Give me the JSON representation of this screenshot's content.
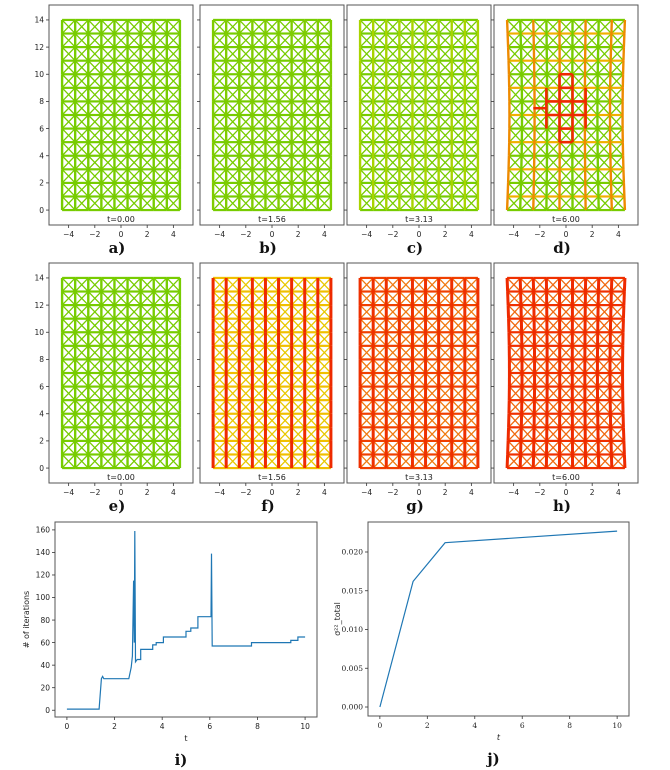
{
  "lattice_panels": [
    {
      "label": "a)",
      "time": "t=0.00",
      "colors": {
        "horizontal": "#77cc00",
        "vertical": "#77cc00",
        "diagonal": "#77cc00"
      }
    },
    {
      "label": "b)",
      "time": "t=1.56",
      "colors": {
        "horizontal": "#77cc00",
        "vertical": "#80cc00",
        "diagonal": "#77cc00"
      }
    },
    {
      "label": "c)",
      "time": "t=3.13",
      "colors": {
        "horizontal": "#77cc00",
        "vertical": "#a8d400",
        "diagonal": "#77cc00"
      }
    },
    {
      "label": "d)",
      "time": "t=6.00",
      "colors": {
        "horizontal": "#f0b000",
        "vertical": "#ee8a00",
        "diagonal": "#77cc00",
        "hotspot": "#ee2a00"
      }
    },
    {
      "label": "e)",
      "time": "t=0.00",
      "colors": {
        "horizontal": "#77cc00",
        "vertical": "#77cc00",
        "diagonal": "#77cc00"
      }
    },
    {
      "label": "f)",
      "time": "t=1.56",
      "colors": {
        "horizontal": "#f0c000",
        "vertical": "#ee2a00",
        "diagonal": "#e8c800"
      }
    },
    {
      "label": "g)",
      "time": "t=3.13",
      "colors": {
        "horizontal": "#f04000",
        "vertical": "#ee3000",
        "diagonal": "#f07a10"
      }
    },
    {
      "label": "h)",
      "time": "t=6.00",
      "colors": {
        "horizontal": "#f03000",
        "vertical": "#ee2a00",
        "diagonal": "#f06a10"
      }
    }
  ],
  "lattice_axes": {
    "x_ticks": [
      "−4",
      "−2",
      "0",
      "2",
      "4"
    ],
    "x_tick_values": [
      -4,
      -2,
      0,
      2,
      4
    ],
    "y_ticks": [
      "0",
      "2",
      "4",
      "6",
      "8",
      "10",
      "12",
      "14"
    ],
    "y_tick_values": [
      0,
      2,
      4,
      6,
      8,
      10,
      12,
      14
    ],
    "xlim": [
      -5.5,
      5.5
    ],
    "ylim": [
      -1.1,
      15.1
    ]
  },
  "chart_data": [
    {
      "type": "line",
      "panel_label": "i)",
      "xlabel": "t",
      "ylabel": "# of iterations",
      "xlim": [
        -0.5,
        10.5
      ],
      "ylim": [
        -6,
        167
      ],
      "x_ticks": [
        0,
        2,
        4,
        6,
        8,
        10
      ],
      "y_ticks": [
        0,
        20,
        40,
        60,
        80,
        100,
        120,
        140,
        160
      ],
      "grid": false,
      "color": "#1f77b4",
      "x": [
        0,
        1.35,
        1.45,
        1.5,
        1.55,
        2.6,
        2.7,
        2.75,
        2.8,
        2.83,
        2.85,
        2.88,
        2.95,
        3.1,
        3.1,
        3.6,
        3.6,
        3.75,
        3.75,
        4.05,
        4.05,
        5.0,
        5.0,
        5.2,
        5.2,
        5.5,
        5.5,
        6.05,
        6.07,
        6.1,
        7.75,
        7.75,
        9.4,
        9.4,
        9.7,
        9.7,
        10.0
      ],
      "y": [
        1,
        1,
        28,
        30,
        28,
        28,
        38,
        48,
        115,
        60,
        159,
        43,
        45,
        45,
        54,
        54,
        58,
        58,
        60,
        60,
        65,
        65,
        70,
        70,
        73,
        73,
        83,
        83,
        139,
        57,
        57,
        60,
        60,
        62,
        62,
        65,
        65
      ]
    },
    {
      "type": "line",
      "panel_label": "j)",
      "xlabel": "t",
      "ylabel": "σ²²_total",
      "xlim": [
        -0.5,
        10.5
      ],
      "ylim": [
        -0.00116,
        0.02387
      ],
      "x_ticks": [
        0,
        2,
        4,
        6,
        8,
        10
      ],
      "y_ticks": [
        "0.000",
        "0.005",
        "0.010",
        "0.015",
        "0.020"
      ],
      "y_tick_values": [
        0,
        0.005,
        0.01,
        0.015,
        0.02
      ],
      "grid": false,
      "color": "#1f77b4",
      "x": [
        0,
        1.4,
        2.75,
        10
      ],
      "y": [
        0,
        0.0162,
        0.0212,
        0.0227
      ]
    }
  ]
}
